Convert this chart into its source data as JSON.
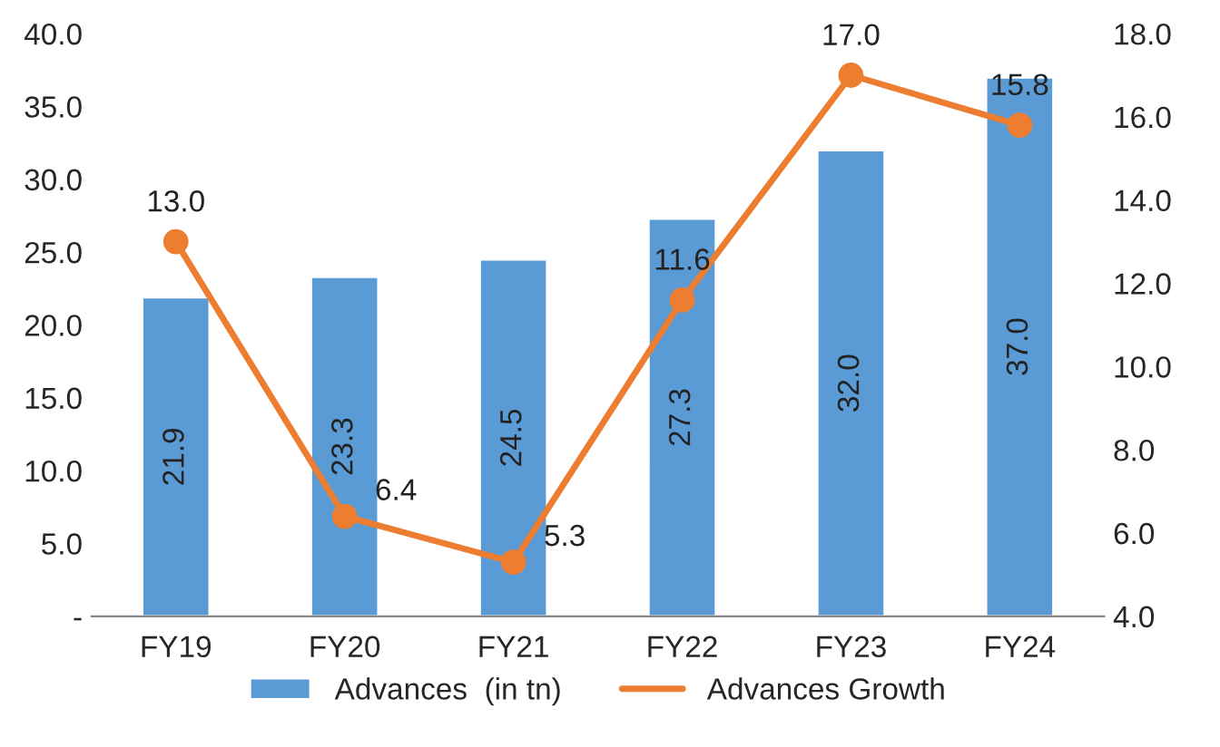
{
  "chart_data": {
    "type": "bar",
    "categories": [
      "FY19",
      "FY20",
      "FY21",
      "FY22",
      "FY23",
      "FY24"
    ],
    "series": [
      {
        "name": "Advances  (in tn)",
        "color": "#5b9bd5",
        "values": [
          21.9,
          23.3,
          24.5,
          27.3,
          32.0,
          37.0
        ],
        "value_labels": [
          "21.9",
          "23.3",
          "24.5",
          "27.3",
          "32.0",
          "37.0"
        ]
      },
      {
        "name": "Advances Growth",
        "type": "line",
        "axis": "y2",
        "color": "#ed7d31",
        "values": [
          13.0,
          6.4,
          5.3,
          11.6,
          17.0,
          15.8
        ],
        "value_labels": [
          "13.0",
          "6.4",
          "5.3",
          "11.6",
          "17.0",
          "15.8"
        ]
      }
    ],
    "ylim": [
      0,
      40
    ],
    "yticks": [
      {
        "value": 0,
        "label": "-"
      },
      {
        "value": 5,
        "label": "5.0"
      },
      {
        "value": 10,
        "label": "10.0"
      },
      {
        "value": 15,
        "label": "15.0"
      },
      {
        "value": 20,
        "label": "20.0"
      },
      {
        "value": 25,
        "label": "25.0"
      },
      {
        "value": 30,
        "label": "30.0"
      },
      {
        "value": 35,
        "label": "35.0"
      },
      {
        "value": 40,
        "label": "40.0"
      }
    ],
    "y2lim": [
      4,
      18
    ],
    "y2ticks": [
      {
        "value": 4,
        "label": "4.0"
      },
      {
        "value": 6,
        "label": "6.0"
      },
      {
        "value": 8,
        "label": "8.0"
      },
      {
        "value": 10,
        "label": "10.0"
      },
      {
        "value": 12,
        "label": "12.0"
      },
      {
        "value": 14,
        "label": "14.0"
      },
      {
        "value": 16,
        "label": "16.0"
      },
      {
        "value": 18,
        "label": "18.0"
      }
    ],
    "grid": false,
    "legend": "bottom",
    "marker": "circle",
    "line_style": "solid"
  }
}
